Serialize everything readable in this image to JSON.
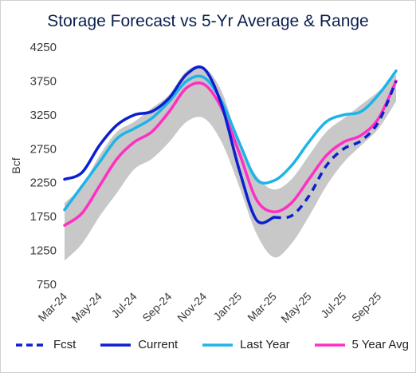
{
  "chart_data": {
    "type": "line",
    "title": "Storage Forecast vs 5-Yr Average & Range",
    "ylabel": "Bcf",
    "ylim": [
      750,
      4250
    ],
    "yticks": [
      750,
      1250,
      1750,
      2250,
      2750,
      3250,
      3750,
      4250
    ],
    "x_ticks": [
      "Mar-24",
      "May-24",
      "Jul-24",
      "Sep-24",
      "Nov-24",
      "Jan-25",
      "Mar-25",
      "May-25",
      "Jul-25",
      "Sep-25"
    ],
    "x": [
      "2024-03",
      "2024-04",
      "2024-05",
      "2024-06",
      "2024-07",
      "2024-08",
      "2024-09",
      "2024-10",
      "2024-11",
      "2024-12",
      "2025-01",
      "2025-02",
      "2025-03",
      "2025-04",
      "2025-05",
      "2025-06",
      "2025-07",
      "2025-08",
      "2025-09",
      "2025-10"
    ],
    "range": {
      "min": [
        1100,
        1350,
        1750,
        2100,
        2450,
        2600,
        2850,
        3150,
        3200,
        2850,
        2200,
        1500,
        1150,
        1350,
        1750,
        2200,
        2550,
        2800,
        3050,
        3450
      ],
      "max": [
        1950,
        2200,
        2650,
        3000,
        3150,
        3350,
        3550,
        3900,
        3950,
        3600,
        2850,
        2350,
        2150,
        2300,
        2650,
        3000,
        3200,
        3400,
        3600,
        3850
      ]
    },
    "series": [
      {
        "name": "Fcst",
        "color": "#0b1fd0",
        "dash": true,
        "values": [
          null,
          null,
          null,
          null,
          null,
          null,
          null,
          null,
          null,
          null,
          null,
          null,
          1740,
          1760,
          2050,
          2500,
          2750,
          2870,
          3150,
          3750
        ]
      },
      {
        "name": "Current",
        "color": "#0b1fd0",
        "dash": false,
        "values": [
          2300,
          2400,
          2800,
          3100,
          3250,
          3300,
          3500,
          3850,
          3930,
          3400,
          2450,
          1700,
          1740,
          null,
          null,
          null,
          null,
          null,
          null,
          null
        ]
      },
      {
        "name": "Last Year",
        "color": "#1eb4e8",
        "dash": false,
        "values": [
          1850,
          2200,
          2550,
          2900,
          3050,
          3200,
          3450,
          3750,
          3800,
          3450,
          2850,
          2300,
          2280,
          2500,
          2850,
          3150,
          3250,
          3300,
          3550,
          3900
        ]
      },
      {
        "name": "5 Year Avg",
        "color": "#ff2ec4",
        "dash": false,
        "values": [
          1620,
          1800,
          2200,
          2600,
          2850,
          3000,
          3300,
          3650,
          3700,
          3350,
          2700,
          2000,
          1820,
          1950,
          2300,
          2650,
          2850,
          2950,
          3200,
          3750
        ]
      }
    ],
    "range_color": "#c8c8c8",
    "legend_position": "bottom"
  }
}
